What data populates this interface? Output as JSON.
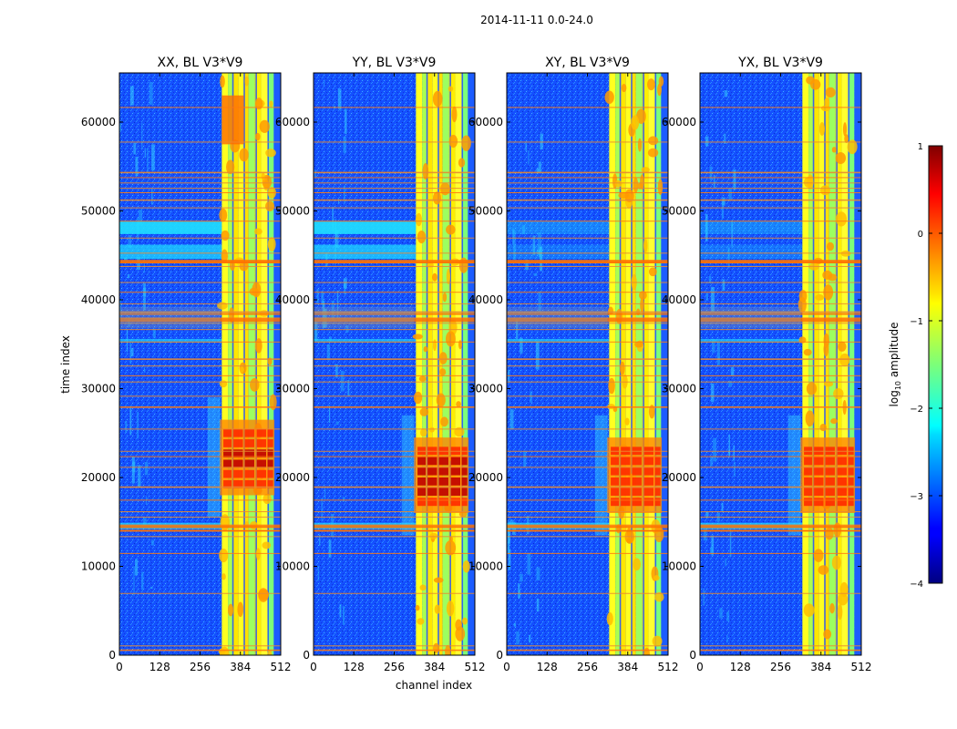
{
  "suptitle": "2014-11-11 0.0-24.0",
  "xlabel": "channel index",
  "ylabel": "time index",
  "colorbar": {
    "label_main": "log",
    "label_sub": "10",
    "label_rest": " amplitude",
    "range": [
      -4,
      1
    ],
    "ticks": [
      "1",
      "0",
      "−1",
      "−2",
      "−3",
      "−4"
    ],
    "tick_values": [
      1,
      0,
      -1,
      -2,
      -3,
      -4
    ],
    "colormap": "jet"
  },
  "chart_data": {
    "type": "heatmap",
    "title": "2014-11-11 0.0-24.0",
    "xlabel": "channel index",
    "ylabel": "time index",
    "xlim": [
      0,
      512
    ],
    "ylim": [
      0,
      65536
    ],
    "x_ticks": [
      0,
      128,
      256,
      384,
      512
    ],
    "x_tick_labels": [
      "0",
      "128",
      "256",
      "384",
      "512"
    ],
    "y_ticks": [
      0,
      10000,
      20000,
      30000,
      40000,
      50000,
      60000
    ],
    "y_tick_labels": [
      "0",
      "10000",
      "20000",
      "30000",
      "40000",
      "50000",
      "60000"
    ],
    "color_scale": {
      "label": "log10 amplitude",
      "min": -4,
      "max": 1
    },
    "panels": [
      {
        "name": "xx",
        "title": "XX, BL V3*V9"
      },
      {
        "name": "yy",
        "title": "YY, BL V3*V9"
      },
      {
        "name": "xy",
        "title": "XY, BL V3*V9"
      },
      {
        "name": "yx",
        "title": "YX, BL V3*V9"
      }
    ]
  }
}
